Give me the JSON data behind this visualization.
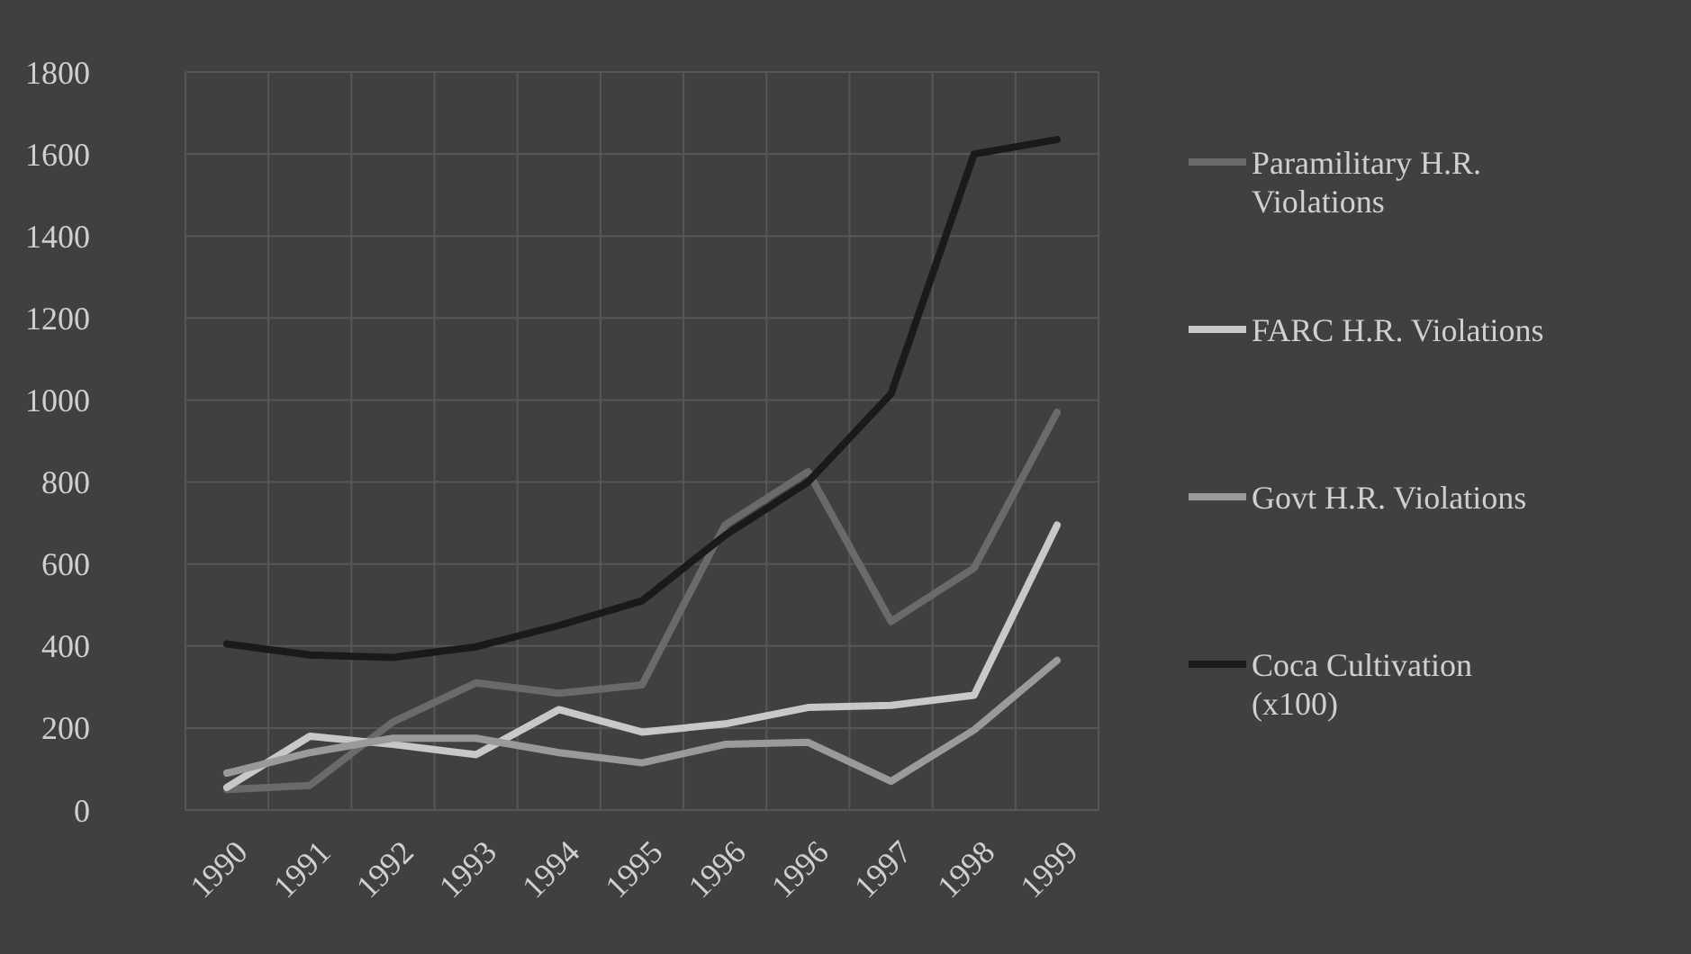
{
  "chart_data": {
    "type": "line",
    "categories": [
      "1990",
      "1991",
      "1992",
      "1993",
      "1994",
      "1995",
      "1996",
      "1996",
      "1997",
      "1998",
      "1999"
    ],
    "ylim": [
      0,
      1800
    ],
    "yticks": [
      0,
      200,
      400,
      600,
      800,
      1000,
      1200,
      1400,
      1600,
      1800
    ],
    "grid": true,
    "legend": "right",
    "line_style": "solid",
    "marker": "none",
    "series": [
      {
        "name": "Paramilitary H.R. Violations",
        "color": "#6a6a6a",
        "values": [
          50,
          60,
          215,
          310,
          285,
          305,
          695,
          825,
          460,
          590,
          970
        ]
      },
      {
        "name": "FARC H.R. Violations",
        "color": "#c8c8c8",
        "values": [
          55,
          180,
          160,
          135,
          245,
          190,
          210,
          250,
          255,
          280,
          695
        ]
      },
      {
        "name": "Govt H.R. Violations",
        "color": "#9a9a9a",
        "values": [
          90,
          140,
          175,
          175,
          140,
          115,
          160,
          165,
          70,
          195,
          365
        ]
      },
      {
        "name": "Coca Cultivation (x100)",
        "color": "#1a1a1a",
        "values": [
          405,
          378,
          372,
          398,
          450,
          510,
          670,
          800,
          1015,
          1600,
          1635
        ]
      }
    ]
  }
}
